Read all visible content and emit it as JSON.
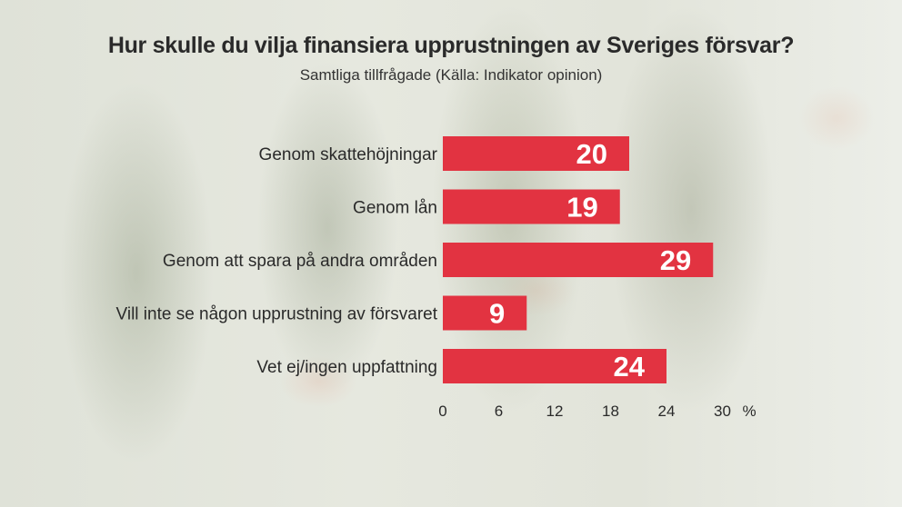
{
  "chart_data": {
    "type": "bar",
    "orientation": "horizontal",
    "title": "Hur skulle du vilja finansiera upprustningen av Sveriges försvar?",
    "subtitle": "Samtliga tillfrågade (Källa: Indikator opinion)",
    "categories": [
      "Genom skattehöjningar",
      "Genom lån",
      "Genom att spara på andra områden",
      "Vill inte se någon upprustning av försvaret",
      "Vet ej/ingen uppfattning"
    ],
    "values": [
      20,
      19,
      29,
      9,
      24
    ],
    "xlim": [
      0,
      30
    ],
    "xticks": [
      "0",
      "6",
      "12",
      "18",
      "24",
      "30"
    ],
    "unit": "%",
    "grid": false,
    "legend": "none",
    "bar_color": "#e23341"
  }
}
